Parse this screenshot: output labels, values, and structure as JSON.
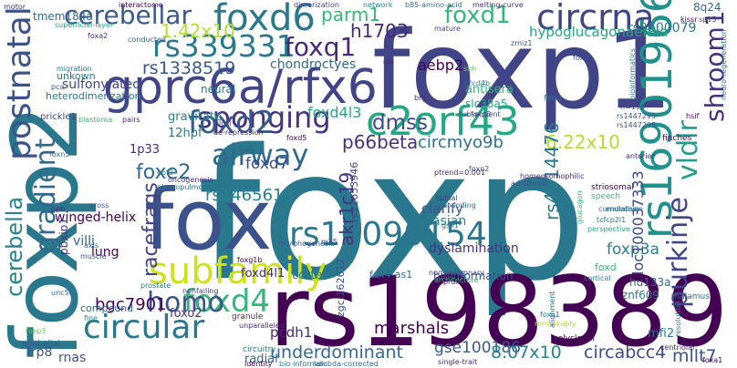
{
  "cloud": {
    "words": [
      {
        "text": "foxp",
        "color": "#2a788e"
      },
      {
        "text": "foxp1",
        "color": "#414487"
      },
      {
        "text": "foxp2",
        "color": "#2a788e"
      },
      {
        "text": "rs1983891",
        "color": "#440154"
      },
      {
        "text": "fox",
        "color": "#3b528b"
      },
      {
        "text": "gprc6a/rfx6",
        "color": "#414487"
      },
      {
        "text": "rs339331",
        "color": "#2a788e"
      },
      {
        "text": "c2orf43",
        "color": "#22a884"
      },
      {
        "text": "rs10090154",
        "color": "#2a788e"
      },
      {
        "text": "rs16901966",
        "color": "#21918c"
      },
      {
        "text": "subfamily",
        "color": "#cde11d"
      },
      {
        "text": "foxd6",
        "color": "#2a788e"
      },
      {
        "text": "circrna",
        "color": "#414487"
      },
      {
        "text": "postnatal",
        "color": "#3b528b"
      },
      {
        "text": "sponging",
        "color": "#46327e"
      },
      {
        "text": "foxq1",
        "color": "#482878"
      },
      {
        "text": "foxd1",
        "color": "#35b779"
      },
      {
        "text": "airway",
        "color": "#31688e"
      },
      {
        "text": "foxd2",
        "color": "#38598c"
      },
      {
        "text": "circular",
        "color": "#2a788e"
      },
      {
        "text": "foxd4",
        "color": "#35b779"
      },
      {
        "text": "homo",
        "color": "#3b528b"
      },
      {
        "text": "purkinje",
        "color": "#414487"
      },
      {
        "text": "vldlr",
        "color": "#1f9e89"
      },
      {
        "text": "shroom1",
        "color": "#46327e"
      },
      {
        "text": "gradient",
        "color": "#31688e"
      },
      {
        "text": "cerebella",
        "color": "#26828e"
      },
      {
        "text": "cerebellar",
        "color": "#38598c"
      },
      {
        "text": "1.42x10",
        "color": "#b5de2b"
      },
      {
        "text": "parm1",
        "color": "#35b779"
      },
      {
        "text": "h1703",
        "color": "#482878"
      },
      {
        "text": "hypoglucagonaemia",
        "color": "#22a884"
      },
      {
        "text": "rs9600079",
        "color": "#2a788e"
      },
      {
        "text": "rs1338519",
        "color": "#38598c"
      },
      {
        "text": "chondroctyes",
        "color": "#31688e"
      },
      {
        "text": "aebp2",
        "color": "#440154"
      },
      {
        "text": "dmss",
        "color": "#3e4a89"
      },
      {
        "text": "foxd4l3",
        "color": "#22a884"
      },
      {
        "text": "p66beta",
        "color": "#46327e"
      },
      {
        "text": "circmyo9b",
        "color": "#2c728e"
      },
      {
        "text": "6.22x10",
        "color": "#b5de2b"
      },
      {
        "text": "foxe2",
        "color": "#31688e"
      },
      {
        "text": "foxd7",
        "color": "#3e4a89"
      },
      {
        "text": "rs1465618",
        "color": "#26828e"
      },
      {
        "text": "akr1c19",
        "color": "#46327e"
      },
      {
        "text": "rs4714476",
        "color": "#2a788e"
      },
      {
        "text": "foxp3a",
        "color": "#26828e"
      },
      {
        "text": "loc100037333",
        "color": "#3e4a89"
      },
      {
        "text": "racefrags",
        "color": "#414487"
      },
      {
        "text": "bgc7901",
        "color": "#440154"
      },
      {
        "text": "underdominant",
        "color": "#31688e"
      },
      {
        "text": "gse100186",
        "color": "#38598c"
      },
      {
        "text": "8.07x10",
        "color": "#26828e"
      },
      {
        "text": "circabcc4",
        "color": "#3e4a89"
      },
      {
        "text": "mllt7",
        "color": "#3b528b"
      },
      {
        "text": "marshals",
        "color": "#440154"
      },
      {
        "text": "pcdh1",
        "color": "#482878"
      },
      {
        "text": "zgc:162612",
        "color": "#3b528b"
      },
      {
        "text": "dyslamination",
        "color": "#46327e"
      },
      {
        "text": "rs12653946",
        "color": "#414487"
      },
      {
        "text": "bioinformation",
        "color": "#3b528b"
      },
      {
        "text": "foxd",
        "color": "#35b779"
      },
      {
        "text": "znf609",
        "color": "#2a788e"
      },
      {
        "text": "hu133a",
        "color": "#31688e"
      },
      {
        "text": "mfi2",
        "color": "#2a788e"
      },
      {
        "text": "foxd4l1",
        "color": "#482878"
      },
      {
        "text": "foxo2",
        "color": "#46327e"
      },
      {
        "text": "cortex",
        "color": "#2a788e"
      },
      {
        "text": "foxp3",
        "color": "#6ece58"
      },
      {
        "text": "foxd3",
        "color": "#414487"
      },
      {
        "text": "compound",
        "color": "#31688e"
      },
      {
        "text": "winged-helix",
        "color": "#440154"
      },
      {
        "text": "lung",
        "color": "#440154"
      },
      {
        "text": "villi",
        "color": "#31688e"
      },
      {
        "text": "lrp8",
        "color": "#3b528b"
      },
      {
        "text": "rnas",
        "color": "#3b528b"
      },
      {
        "text": "pbxip1",
        "color": "#46327e"
      },
      {
        "text": "tmem184a",
        "color": "#31688e"
      },
      {
        "text": "sulfonylated",
        "color": "#414487"
      },
      {
        "text": "unkown",
        "color": "#2a788e"
      },
      {
        "text": "heterodimerization",
        "color": "#2a788e"
      },
      {
        "text": "gravitate",
        "color": "#26828e"
      },
      {
        "text": "neural",
        "color": "#2a788e"
      },
      {
        "text": "12hpf",
        "color": "#2c728e"
      },
      {
        "text": "1p33",
        "color": "#482878"
      },
      {
        "text": "clarify",
        "color": "#3b528b"
      },
      {
        "text": "asian",
        "color": "#26828e"
      },
      {
        "text": "antisera",
        "color": "#35b779"
      },
      {
        "text": "slc38a5",
        "color": "#22a884"
      },
      {
        "text": "8q24",
        "color": "#31688e"
      },
      {
        "text": "radial",
        "color": "#31688e"
      },
      {
        "text": "circuitry",
        "color": "#2a788e"
      },
      {
        "text": "granule",
        "color": "#482878"
      },
      {
        "text": "foxa1",
        "color": "#440154"
      },
      {
        "text": "epithelial",
        "color": "#3b528b"
      },
      {
        "text": "prickle1",
        "color": "#414487"
      },
      {
        "text": "thalamus",
        "color": "#2a788e"
      },
      {
        "text": "striosomal",
        "color": "#440154"
      },
      {
        "text": "finches",
        "color": "#440154"
      },
      {
        "text": "polyclonal",
        "color": "#440154"
      },
      {
        "text": "cumulative",
        "color": "#31688e"
      },
      {
        "text": "speech",
        "color": "#35b779"
      },
      {
        "text": "endoderm",
        "color": "#26828e"
      },
      {
        "text": "noncoding",
        "color": "#31688e"
      },
      {
        "text": "spinal",
        "color": "#414487"
      },
      {
        "text": "oncogenesis",
        "color": "#46327e"
      },
      {
        "text": "pleuropulmonary",
        "color": "#2a788e"
      },
      {
        "text": "morphogenesis",
        "color": "#3b528b"
      },
      {
        "text": "nonfailing",
        "color": "#414487"
      },
      {
        "text": "unparalleled",
        "color": "#482878"
      },
      {
        "text": "identity",
        "color": "#440154"
      },
      {
        "text": "prostate",
        "color": "#2a788e"
      },
      {
        "text": "architecture",
        "color": "#35b779"
      },
      {
        "text": "cortical",
        "color": "#26828e"
      },
      {
        "text": "single-trait",
        "color": "#482878"
      },
      {
        "text": "lambda-corrected",
        "color": "#31688e"
      },
      {
        "text": "non-pulmonary",
        "color": "#414487"
      },
      {
        "text": "bio-informdic",
        "color": "#2a788e"
      },
      {
        "text": "fox4-as1",
        "color": "#31688e"
      },
      {
        "text": "foxo1",
        "color": "#2a788e"
      },
      {
        "text": "foxd5",
        "color": "#440154"
      },
      {
        "text": "foxr1",
        "color": "#2a788e"
      },
      {
        "text": "foxa2",
        "color": "#482878"
      },
      {
        "text": "foxc1",
        "color": "#3b528b"
      },
      {
        "text": "foxn5",
        "color": "#31688e"
      },
      {
        "text": "foxg1b",
        "color": "#440154"
      },
      {
        "text": "foxn2",
        "color": "#3b528b"
      },
      {
        "text": "ptrend=0.001",
        "color": "#482878"
      },
      {
        "text": "adulthood",
        "color": "#3b528b"
      },
      {
        "text": "homeosomophilic",
        "color": "#482878"
      },
      {
        "text": "perspective",
        "color": "#22a884"
      },
      {
        "text": "subsequent",
        "color": "#3e4a89"
      },
      {
        "text": "dimerization",
        "color": "#414487"
      },
      {
        "text": "interactome",
        "color": "#440154"
      },
      {
        "text": "network",
        "color": "#26828e"
      },
      {
        "text": "b85-amino-acid",
        "color": "#31688e"
      },
      {
        "text": "melting-curve",
        "color": "#482878"
      },
      {
        "text": "mature",
        "color": "#414487"
      },
      {
        "text": "superficial-layer",
        "color": "#22a884"
      },
      {
        "text": "conducted",
        "color": "#31688e"
      },
      {
        "text": "migration",
        "color": "#2a788e"
      },
      {
        "text": "pca",
        "color": "#3b528b"
      },
      {
        "text": "blastoma",
        "color": "#35b779"
      },
      {
        "text": "pairs",
        "color": "#482878"
      },
      {
        "text": "loci",
        "color": "#46327e"
      },
      {
        "text": "de-repression",
        "color": "#482878"
      },
      {
        "text": "n=196",
        "color": "#414487"
      },
      {
        "text": "rs1447295",
        "color": "#3b528b"
      },
      {
        "text": "rs1447295",
        "color": "#3b528b"
      },
      {
        "text": "bioinformatics",
        "color": "#2a788e"
      },
      {
        "text": "neuro-regeneration",
        "color": "#2a788e"
      },
      {
        "text": "kissr",
        "color": "#440154"
      },
      {
        "text": "sp15",
        "color": "#3b528b"
      },
      {
        "text": "c2cd4b",
        "color": "#2c728e"
      },
      {
        "text": "brg",
        "color": "#482878"
      },
      {
        "text": "shh",
        "color": "#6ece58"
      },
      {
        "text": "ola",
        "color": "#482878"
      },
      {
        "text": "zmiz1",
        "color": "#3b528b"
      },
      {
        "text": "motor",
        "color": "#46327e"
      },
      {
        "text": "ppb",
        "color": "#482878"
      },
      {
        "text": "gross",
        "color": "#3b528b"
      },
      {
        "text": "axis",
        "color": "#31688e"
      },
      {
        "text": "muscle",
        "color": "#3b528b"
      },
      {
        "text": "unc5c",
        "color": "#31688e"
      },
      {
        "text": "centriolar",
        "color": "#482878"
      },
      {
        "text": "resolution",
        "color": "#26828e"
      },
      {
        "text": "anterior",
        "color": "#482878"
      },
      {
        "text": "tcfcp2l1",
        "color": "#2a788e"
      },
      {
        "text": "glucagon",
        "color": "#35b779"
      },
      {
        "text": "fine",
        "color": "#26828e"
      },
      {
        "text": "ebf3",
        "color": "#26828e"
      },
      {
        "text": "hsif",
        "color": "#440154"
      },
      {
        "text": "gsx1",
        "color": "#31688e"
      },
      {
        "text": "m15",
        "color": "#414487"
      },
      {
        "text": "prdx4",
        "color": "#482878"
      },
      {
        "text": "remarkably",
        "color": "#b5de2b"
      },
      {
        "text": "alignment",
        "color": "#2c728e"
      }
    ]
  }
}
